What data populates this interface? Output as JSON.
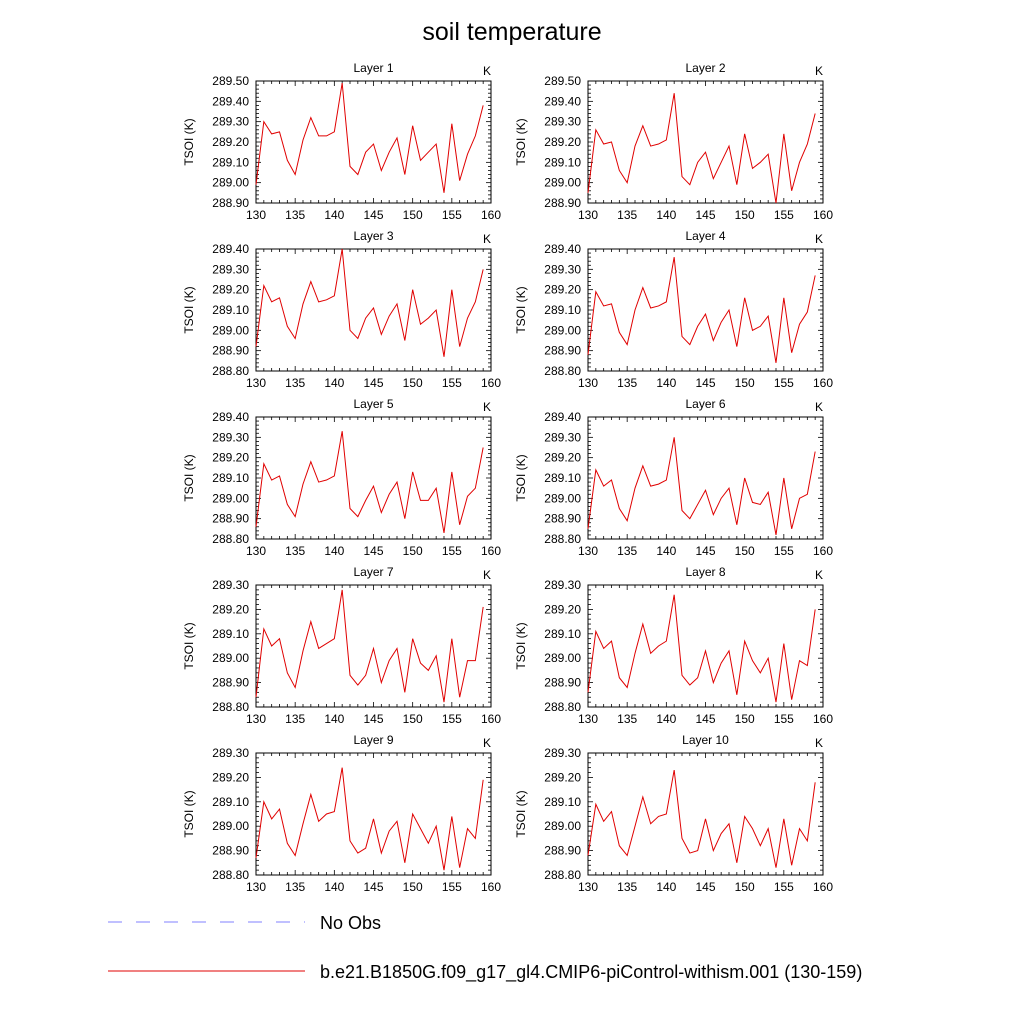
{
  "figure": {
    "title": "soil temperature",
    "colors": {
      "model": "#e00000",
      "obs": "#8080ff",
      "axis": "#000000"
    }
  },
  "legend": {
    "entries": [
      {
        "label": "No Obs",
        "style": "dashed",
        "color": "#8080ff"
      },
      {
        "label": "b.e21.B1850G.f09_g17_gl4.CMIP6-piControl-withism.001 (130-159)",
        "style": "solid",
        "color": "#e00000"
      }
    ]
  },
  "chart_data": [
    {
      "type": "line",
      "title": "Layer 1",
      "units": "K",
      "ylabel": "TSOI  (K)",
      "xlabel": "",
      "xlim": [
        130,
        160
      ],
      "ylim": [
        288.9,
        289.5
      ],
      "xticks": [
        "130",
        "135",
        "140",
        "145",
        "150",
        "155",
        "160"
      ],
      "yticks": [
        "288.90",
        "289.00",
        "289.10",
        "289.20",
        "289.30",
        "289.40",
        "289.50"
      ],
      "series": [
        {
          "name": "b.e21.B1850G.f09_g17_gl4.CMIP6-piControl-withism.001 (130-159)",
          "x": [
            130,
            131,
            132,
            133,
            134,
            135,
            136,
            137,
            138,
            139,
            140,
            141,
            142,
            143,
            144,
            145,
            146,
            147,
            148,
            149,
            150,
            151,
            152,
            153,
            154,
            155,
            156,
            157,
            158,
            159
          ],
          "values": [
            288.99,
            289.3,
            289.24,
            289.25,
            289.11,
            289.04,
            289.21,
            289.32,
            289.23,
            289.23,
            289.25,
            289.49,
            289.08,
            289.04,
            289.15,
            289.19,
            289.06,
            289.15,
            289.22,
            289.04,
            289.28,
            289.11,
            289.15,
            289.19,
            288.95,
            289.29,
            289.01,
            289.14,
            289.23,
            289.38
          ]
        }
      ]
    },
    {
      "type": "line",
      "title": "Layer 2",
      "units": "K",
      "ylabel": "TSOI  (K)",
      "xlabel": "",
      "xlim": [
        130,
        160
      ],
      "ylim": [
        288.9,
        289.5
      ],
      "xticks": [
        "130",
        "135",
        "140",
        "145",
        "150",
        "155",
        "160"
      ],
      "yticks": [
        "288.90",
        "289.00",
        "289.10",
        "289.20",
        "289.30",
        "289.40",
        "289.50"
      ],
      "series": [
        {
          "name": "b.e21.B1850G.f09_g17_gl4.CMIP6-piControl-withism.001 (130-159)",
          "x": [
            130,
            131,
            132,
            133,
            134,
            135,
            136,
            137,
            138,
            139,
            140,
            141,
            142,
            143,
            144,
            145,
            146,
            147,
            148,
            149,
            150,
            151,
            152,
            153,
            154,
            155,
            156,
            157,
            158,
            159
          ],
          "values": [
            288.95,
            289.26,
            289.19,
            289.2,
            289.06,
            289.0,
            289.18,
            289.28,
            289.18,
            289.19,
            289.21,
            289.44,
            289.03,
            288.99,
            289.1,
            289.15,
            289.02,
            289.1,
            289.18,
            288.99,
            289.24,
            289.07,
            289.1,
            289.14,
            288.9,
            289.24,
            288.96,
            289.1,
            289.19,
            289.34
          ]
        }
      ]
    },
    {
      "type": "line",
      "title": "Layer 3",
      "units": "K",
      "ylabel": "TSOI  (K)",
      "xlabel": "",
      "xlim": [
        130,
        160
      ],
      "ylim": [
        288.8,
        289.4
      ],
      "xticks": [
        "130",
        "135",
        "140",
        "145",
        "150",
        "155",
        "160"
      ],
      "yticks": [
        "288.80",
        "288.90",
        "289.00",
        "289.10",
        "289.20",
        "289.30",
        "289.40"
      ],
      "series": [
        {
          "name": "b.e21.B1850G.f09_g17_gl4.CMIP6-piControl-withism.001 (130-159)",
          "x": [
            130,
            131,
            132,
            133,
            134,
            135,
            136,
            137,
            138,
            139,
            140,
            141,
            142,
            143,
            144,
            145,
            146,
            147,
            148,
            149,
            150,
            151,
            152,
            153,
            154,
            155,
            156,
            157,
            158,
            159
          ],
          "values": [
            288.92,
            289.22,
            289.14,
            289.16,
            289.02,
            288.96,
            289.13,
            289.24,
            289.14,
            289.15,
            289.17,
            289.4,
            289.0,
            288.96,
            289.06,
            289.11,
            288.98,
            289.07,
            289.13,
            288.95,
            289.2,
            289.03,
            289.06,
            289.1,
            288.87,
            289.2,
            288.92,
            289.06,
            289.14,
            289.3
          ]
        }
      ]
    },
    {
      "type": "line",
      "title": "Layer 4",
      "units": "K",
      "ylabel": "TSOI  (K)",
      "xlabel": "",
      "xlim": [
        130,
        160
      ],
      "ylim": [
        288.8,
        289.4
      ],
      "xticks": [
        "130",
        "135",
        "140",
        "145",
        "150",
        "155",
        "160"
      ],
      "yticks": [
        "288.80",
        "288.90",
        "289.00",
        "289.10",
        "289.20",
        "289.30",
        "289.40"
      ],
      "series": [
        {
          "name": "b.e21.B1850G.f09_g17_gl4.CMIP6-piControl-withism.001 (130-159)",
          "x": [
            130,
            131,
            132,
            133,
            134,
            135,
            136,
            137,
            138,
            139,
            140,
            141,
            142,
            143,
            144,
            145,
            146,
            147,
            148,
            149,
            150,
            151,
            152,
            153,
            154,
            155,
            156,
            157,
            158,
            159
          ],
          "values": [
            288.88,
            289.19,
            289.12,
            289.13,
            288.99,
            288.93,
            289.1,
            289.21,
            289.11,
            289.12,
            289.14,
            289.36,
            288.97,
            288.93,
            289.02,
            289.08,
            288.95,
            289.04,
            289.1,
            288.92,
            289.16,
            289.0,
            289.02,
            289.07,
            288.84,
            289.16,
            288.89,
            289.03,
            289.09,
            289.27
          ]
        }
      ]
    },
    {
      "type": "line",
      "title": "Layer 5",
      "units": "K",
      "ylabel": "TSOI  (K)",
      "xlabel": "",
      "xlim": [
        130,
        160
      ],
      "ylim": [
        288.8,
        289.4
      ],
      "xticks": [
        "130",
        "135",
        "140",
        "145",
        "150",
        "155",
        "160"
      ],
      "yticks": [
        "288.80",
        "288.90",
        "289.00",
        "289.10",
        "289.20",
        "289.30",
        "289.40"
      ],
      "series": [
        {
          "name": "b.e21.B1850G.f09_g17_gl4.CMIP6-piControl-withism.001 (130-159)",
          "x": [
            130,
            131,
            132,
            133,
            134,
            135,
            136,
            137,
            138,
            139,
            140,
            141,
            142,
            143,
            144,
            145,
            146,
            147,
            148,
            149,
            150,
            151,
            152,
            153,
            154,
            155,
            156,
            157,
            158,
            159
          ],
          "values": [
            288.86,
            289.17,
            289.09,
            289.11,
            288.97,
            288.91,
            289.07,
            289.18,
            289.08,
            289.09,
            289.11,
            289.33,
            288.95,
            288.91,
            288.99,
            289.06,
            288.93,
            289.02,
            289.08,
            288.9,
            289.13,
            288.99,
            288.99,
            289.05,
            288.83,
            289.13,
            288.87,
            289.01,
            289.05,
            289.25
          ]
        }
      ]
    },
    {
      "type": "line",
      "title": "Layer 6",
      "units": "K",
      "ylabel": "TSOI  (K)",
      "xlabel": "",
      "xlim": [
        130,
        160
      ],
      "ylim": [
        288.8,
        289.4
      ],
      "xticks": [
        "130",
        "135",
        "140",
        "145",
        "150",
        "155",
        "160"
      ],
      "yticks": [
        "288.80",
        "288.90",
        "289.00",
        "289.10",
        "289.20",
        "289.30",
        "289.40"
      ],
      "series": [
        {
          "name": "b.e21.B1850G.f09_g17_gl4.CMIP6-piControl-withism.001 (130-159)",
          "x": [
            130,
            131,
            132,
            133,
            134,
            135,
            136,
            137,
            138,
            139,
            140,
            141,
            142,
            143,
            144,
            145,
            146,
            147,
            148,
            149,
            150,
            151,
            152,
            153,
            154,
            155,
            156,
            157,
            158,
            159
          ],
          "values": [
            288.85,
            289.14,
            289.06,
            289.09,
            288.95,
            288.89,
            289.05,
            289.16,
            289.06,
            289.07,
            289.09,
            289.3,
            288.94,
            288.9,
            288.97,
            289.04,
            288.92,
            289.0,
            289.05,
            288.87,
            289.1,
            288.98,
            288.97,
            289.03,
            288.82,
            289.1,
            288.85,
            289.0,
            289.02,
            289.23
          ]
        }
      ]
    },
    {
      "type": "line",
      "title": "Layer 7",
      "units": "K",
      "ylabel": "TSOI  (K)",
      "xlabel": "",
      "xlim": [
        130,
        160
      ],
      "ylim": [
        288.8,
        289.3
      ],
      "xticks": [
        "130",
        "135",
        "140",
        "145",
        "150",
        "155",
        "160"
      ],
      "yticks": [
        "288.80",
        "288.90",
        "289.00",
        "289.10",
        "289.20",
        "289.30"
      ],
      "series": [
        {
          "name": "b.e21.B1850G.f09_g17_gl4.CMIP6-piControl-withism.001 (130-159)",
          "x": [
            130,
            131,
            132,
            133,
            134,
            135,
            136,
            137,
            138,
            139,
            140,
            141,
            142,
            143,
            144,
            145,
            146,
            147,
            148,
            149,
            150,
            151,
            152,
            153,
            154,
            155,
            156,
            157,
            158,
            159
          ],
          "values": [
            288.84,
            289.12,
            289.05,
            289.08,
            288.94,
            288.88,
            289.03,
            289.15,
            289.04,
            289.06,
            289.08,
            289.28,
            288.93,
            288.89,
            288.93,
            289.04,
            288.9,
            288.99,
            289.04,
            288.86,
            289.08,
            288.98,
            288.95,
            289.01,
            288.82,
            289.08,
            288.84,
            288.99,
            288.99,
            289.21
          ]
        }
      ]
    },
    {
      "type": "line",
      "title": "Layer 8",
      "units": "K",
      "ylabel": "TSOI  (K)",
      "xlabel": "",
      "xlim": [
        130,
        160
      ],
      "ylim": [
        288.8,
        289.3
      ],
      "xticks": [
        "130",
        "135",
        "140",
        "145",
        "150",
        "155",
        "160"
      ],
      "yticks": [
        "288.80",
        "288.90",
        "289.00",
        "289.10",
        "289.20",
        "289.30"
      ],
      "series": [
        {
          "name": "b.e21.B1850G.f09_g17_gl4.CMIP6-piControl-withism.001 (130-159)",
          "x": [
            130,
            131,
            132,
            133,
            134,
            135,
            136,
            137,
            138,
            139,
            140,
            141,
            142,
            143,
            144,
            145,
            146,
            147,
            148,
            149,
            150,
            151,
            152,
            153,
            154,
            155,
            156,
            157,
            158,
            159
          ],
          "values": [
            288.86,
            289.11,
            289.04,
            289.07,
            288.92,
            288.88,
            289.02,
            289.14,
            289.02,
            289.05,
            289.07,
            289.26,
            288.93,
            288.89,
            288.92,
            289.03,
            288.9,
            288.98,
            289.03,
            288.85,
            289.07,
            288.99,
            288.94,
            289.0,
            288.82,
            289.06,
            288.83,
            288.99,
            288.97,
            289.2
          ]
        }
      ]
    },
    {
      "type": "line",
      "title": "Layer 9",
      "units": "K",
      "ylabel": "TSOI  (K)",
      "xlabel": "",
      "xlim": [
        130,
        160
      ],
      "ylim": [
        288.8,
        289.3
      ],
      "xticks": [
        "130",
        "135",
        "140",
        "145",
        "150",
        "155",
        "160"
      ],
      "yticks": [
        "288.80",
        "288.90",
        "289.00",
        "289.10",
        "289.20",
        "289.30"
      ],
      "series": [
        {
          "name": "b.e21.B1850G.f09_g17_gl4.CMIP6-piControl-withism.001 (130-159)",
          "x": [
            130,
            131,
            132,
            133,
            134,
            135,
            136,
            137,
            138,
            139,
            140,
            141,
            142,
            143,
            144,
            145,
            146,
            147,
            148,
            149,
            150,
            151,
            152,
            153,
            154,
            155,
            156,
            157,
            158,
            159
          ],
          "values": [
            288.87,
            289.1,
            289.03,
            289.07,
            288.93,
            288.88,
            289.01,
            289.13,
            289.02,
            289.05,
            289.06,
            289.24,
            288.94,
            288.89,
            288.91,
            289.03,
            288.89,
            288.98,
            289.02,
            288.85,
            289.05,
            288.99,
            288.93,
            289.0,
            288.82,
            289.04,
            288.83,
            288.99,
            288.95,
            289.19
          ]
        }
      ]
    },
    {
      "type": "line",
      "title": "Layer 10",
      "units": "K",
      "ylabel": "TSOI  (K)",
      "xlabel": "",
      "xlim": [
        130,
        160
      ],
      "ylim": [
        288.8,
        289.3
      ],
      "xticks": [
        "130",
        "135",
        "140",
        "145",
        "150",
        "155",
        "160"
      ],
      "yticks": [
        "288.80",
        "288.90",
        "289.00",
        "289.10",
        "289.20",
        "289.30"
      ],
      "series": [
        {
          "name": "b.e21.B1850G.f09_g17_gl4.CMIP6-piControl-withism.001 (130-159)",
          "x": [
            130,
            131,
            132,
            133,
            134,
            135,
            136,
            137,
            138,
            139,
            140,
            141,
            142,
            143,
            144,
            145,
            146,
            147,
            148,
            149,
            150,
            151,
            152,
            153,
            154,
            155,
            156,
            157,
            158,
            159
          ],
          "values": [
            288.88,
            289.09,
            289.02,
            289.06,
            288.92,
            288.88,
            289.0,
            289.12,
            289.01,
            289.04,
            289.05,
            289.23,
            288.95,
            288.89,
            288.9,
            289.03,
            288.9,
            288.97,
            289.01,
            288.85,
            289.04,
            288.99,
            288.92,
            288.99,
            288.83,
            289.03,
            288.84,
            288.99,
            288.94,
            289.18
          ]
        }
      ]
    }
  ]
}
